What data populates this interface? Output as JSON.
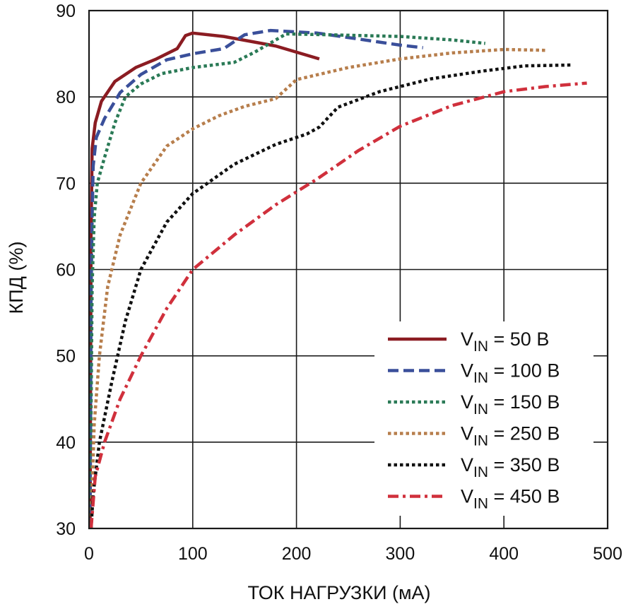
{
  "chart_data": {
    "type": "line",
    "xlabel": "ТОК НАГРУЗКИ (мА)",
    "ylabel": "КПД (%)",
    "xlim": [
      0,
      500
    ],
    "ylim": [
      30,
      90
    ],
    "x_ticks": [
      "0",
      "100",
      "200",
      "300",
      "400",
      "500"
    ],
    "y_ticks": [
      "30",
      "40",
      "50",
      "60",
      "70",
      "80",
      "90"
    ],
    "grid": true,
    "legend_position": "bottom-right",
    "series": [
      {
        "name_main": "V",
        "name_sub": "IN",
        "name_rest": " = 50 В",
        "color": "#8b1c22",
        "dash": "solid",
        "points": [
          [
            1,
            30
          ],
          [
            2,
            64
          ],
          [
            3,
            74
          ],
          [
            6,
            77
          ],
          [
            12,
            79.5
          ],
          [
            25,
            81.8
          ],
          [
            45,
            83.4
          ],
          [
            65,
            84.4
          ],
          [
            85,
            85.6
          ],
          [
            93,
            87.1
          ],
          [
            100,
            87.4
          ],
          [
            130,
            87.0
          ],
          [
            180,
            85.9
          ],
          [
            222,
            84.4
          ]
        ]
      },
      {
        "name_main": "V",
        "name_sub": "IN",
        "name_rest": " = 100 В",
        "color": "#3a4f9a",
        "dash": "dashed",
        "points": [
          [
            1,
            30
          ],
          [
            2,
            57
          ],
          [
            3,
            66
          ],
          [
            4,
            72
          ],
          [
            7,
            75.3
          ],
          [
            15,
            77.5
          ],
          [
            30,
            80.5
          ],
          [
            50,
            82.6
          ],
          [
            75,
            84.3
          ],
          [
            100,
            85.0
          ],
          [
            130,
            85.6
          ],
          [
            150,
            87.2
          ],
          [
            175,
            87.7
          ],
          [
            220,
            87.4
          ],
          [
            260,
            86.7
          ],
          [
            300,
            86.0
          ],
          [
            322,
            85.7
          ]
        ]
      },
      {
        "name_main": "V",
        "name_sub": "IN",
        "name_rest": " = 150 В",
        "color": "#2a7a56",
        "dash": "dotted",
        "points": [
          [
            1,
            30
          ],
          [
            3,
            58
          ],
          [
            5,
            66
          ],
          [
            8,
            70
          ],
          [
            15,
            73
          ],
          [
            25,
            77
          ],
          [
            35,
            80
          ],
          [
            50,
            81.5
          ],
          [
            70,
            82.7
          ],
          [
            100,
            83.4
          ],
          [
            140,
            84.0
          ],
          [
            160,
            85.2
          ],
          [
            190,
            87.3
          ],
          [
            230,
            87.2
          ],
          [
            300,
            87.0
          ],
          [
            350,
            86.6
          ],
          [
            382,
            86.2
          ]
        ]
      },
      {
        "name_main": "V",
        "name_sub": "IN",
        "name_rest": " = 250 В",
        "color": "#b77e4c",
        "dash": "dotted",
        "points": [
          [
            2,
            30
          ],
          [
            5,
            42
          ],
          [
            10,
            50
          ],
          [
            18,
            58
          ],
          [
            30,
            64
          ],
          [
            50,
            70
          ],
          [
            75,
            74.3
          ],
          [
            100,
            76.3
          ],
          [
            125,
            77.8
          ],
          [
            150,
            78.9
          ],
          [
            180,
            79.8
          ],
          [
            200,
            82.0
          ],
          [
            250,
            83.4
          ],
          [
            300,
            84.4
          ],
          [
            350,
            85.1
          ],
          [
            400,
            85.5
          ],
          [
            440,
            85.4
          ]
        ]
      },
      {
        "name_main": "V",
        "name_sub": "IN",
        "name_rest": " = 350 В",
        "color": "#111111",
        "dash": "dotted",
        "points": [
          [
            2,
            30
          ],
          [
            4,
            34
          ],
          [
            10,
            40
          ],
          [
            22,
            47
          ],
          [
            35,
            54
          ],
          [
            50,
            60
          ],
          [
            75,
            65.5
          ],
          [
            100,
            68.8
          ],
          [
            140,
            72.2
          ],
          [
            180,
            74.5
          ],
          [
            210,
            75.7
          ],
          [
            222,
            76.5
          ],
          [
            240,
            78.8
          ],
          [
            280,
            80.6
          ],
          [
            330,
            82.1
          ],
          [
            380,
            83.0
          ],
          [
            420,
            83.6
          ],
          [
            466,
            83.7
          ]
        ]
      },
      {
        "name_main": "V",
        "name_sub": "IN",
        "name_rest": " = 450 В",
        "color": "#d0303c",
        "dash": "dashdot",
        "points": [
          [
            2,
            30
          ],
          [
            6,
            36
          ],
          [
            15,
            40
          ],
          [
            30,
            45
          ],
          [
            50,
            50
          ],
          [
            75,
            55.5
          ],
          [
            100,
            60
          ],
          [
            140,
            64
          ],
          [
            180,
            67.5
          ],
          [
            220,
            70.5
          ],
          [
            260,
            73.8
          ],
          [
            300,
            76.6
          ],
          [
            350,
            79.0
          ],
          [
            400,
            80.6
          ],
          [
            440,
            81.2
          ],
          [
            480,
            81.6
          ]
        ]
      }
    ]
  }
}
